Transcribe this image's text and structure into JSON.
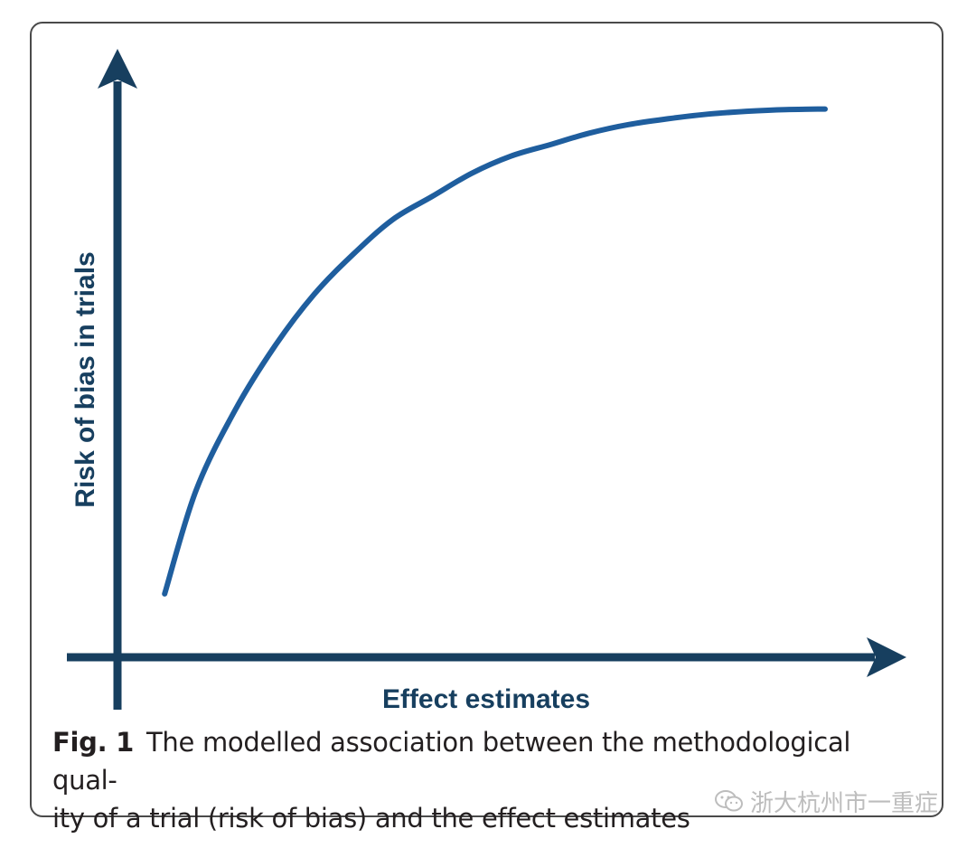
{
  "chart_data": {
    "type": "line",
    "title": "",
    "xlabel": "Effect estimates",
    "ylabel": "Risk of bias in trials",
    "xlim": [
      0,
      1
    ],
    "ylim": [
      0,
      1
    ],
    "grid": false,
    "legend": "none",
    "series": [
      {
        "x": [
          0.06,
          0.1,
          0.15,
          0.2,
          0.25,
          0.3,
          0.35,
          0.4,
          0.45,
          0.5,
          0.55,
          0.6,
          0.65,
          0.7,
          0.75,
          0.8,
          0.85,
          0.9
        ],
        "y": [
          0.11,
          0.29,
          0.43,
          0.54,
          0.63,
          0.7,
          0.76,
          0.8,
          0.84,
          0.87,
          0.89,
          0.91,
          0.925,
          0.935,
          0.943,
          0.948,
          0.951,
          0.952
        ],
        "color": "#1f5e9e"
      }
    ],
    "axis_color": "#173f5f"
  },
  "caption": {
    "label": "Fig. 1",
    "text": "The modelled association between the methodological qual-",
    "text2": "ity of a trial (risk of bias) and the effect estimates"
  },
  "watermark": {
    "text": "浙大杭州市一重症",
    "icon": "wechat-icon"
  }
}
